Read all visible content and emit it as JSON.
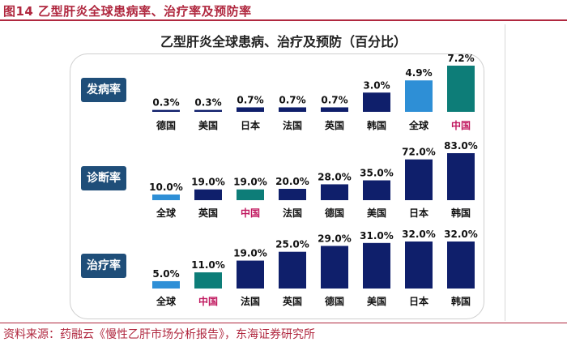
{
  "figure_title": "图14  乙型肝炎全球患病率、治疗率及预防率",
  "source": "资料来源：药融云《慢性乙肝市场分析报告》，东海证券研究所",
  "colors": {
    "accent": "#b0283f",
    "navy": "#0f1f6b",
    "global": "#2e8fd6",
    "china": "#0d7d78",
    "badge": "#1f4e79",
    "china_label": "#c0185f"
  },
  "chart_data": [
    {
      "type": "bar",
      "title": "乙型肝炎全球患病、治疗及预防（百分比）",
      "panel_label": "发病率",
      "categories": [
        "德国",
        "美国",
        "日本",
        "法国",
        "英国",
        "韩国",
        "全球",
        "中国"
      ],
      "values": [
        0.3,
        0.3,
        0.7,
        0.7,
        0.7,
        3.0,
        4.9,
        7.2
      ],
      "value_labels": [
        "0.3%",
        "0.3%",
        "0.7%",
        "0.7%",
        "0.7%",
        "3.0%",
        "4.9%",
        "7.2%"
      ],
      "ylim": [
        0,
        7.2
      ]
    },
    {
      "type": "bar",
      "panel_label": "诊断率",
      "categories": [
        "全球",
        "英国",
        "中国",
        "法国",
        "德国",
        "美国",
        "日本",
        "韩国"
      ],
      "values": [
        10.0,
        19.0,
        19.0,
        20.0,
        28.0,
        35.0,
        72.0,
        83.0
      ],
      "value_labels": [
        "10.0%",
        "19.0%",
        "19.0%",
        "20.0%",
        "28.0%",
        "35.0%",
        "72.0%",
        "83.0%"
      ],
      "ylim": [
        0,
        83
      ]
    },
    {
      "type": "bar",
      "panel_label": "治疗率",
      "categories": [
        "全球",
        "中国",
        "法国",
        "英国",
        "德国",
        "美国",
        "日本",
        "韩国"
      ],
      "values": [
        5.0,
        11.0,
        19.0,
        25.0,
        29.0,
        31.0,
        32.0,
        32.0
      ],
      "value_labels": [
        "5.0%",
        "11.0%",
        "19.0%",
        "25.0%",
        "29.0%",
        "31.0%",
        "32.0%",
        "32.0%"
      ],
      "ylim": [
        0,
        32
      ]
    }
  ]
}
